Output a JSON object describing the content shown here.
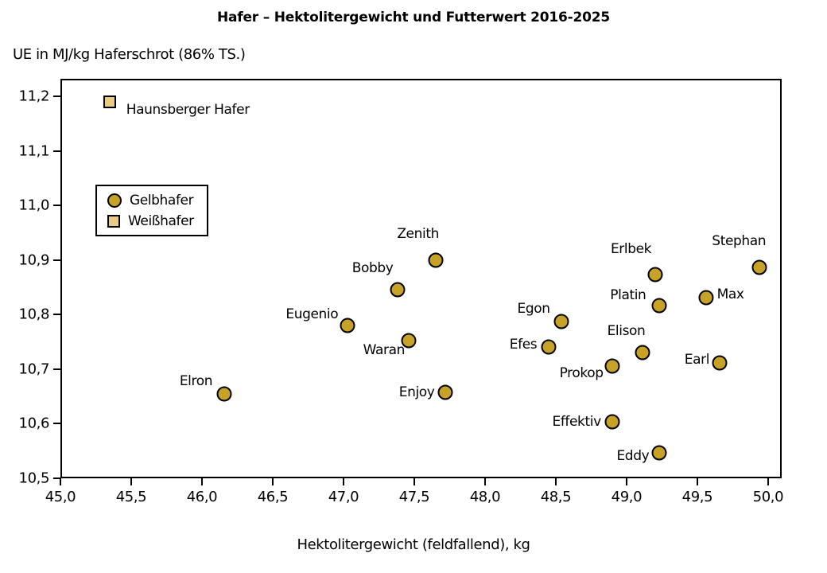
{
  "chart_data": {
    "type": "scatter",
    "title": "Hafer – Hektolitergewicht und Futterwert 2016-2025",
    "y_axis_title": "UE in MJ/kg Haferschrot (86% TS.)",
    "xlabel": "Hektolitergewicht (feldfallend), kg",
    "xlim": [
      45.0,
      50.096
    ],
    "ylim": [
      10.5,
      11.232
    ],
    "grid": false,
    "legend_position": "upper-left-inside",
    "x_ticks": [
      {
        "value": 45.0,
        "label": "45,0"
      },
      {
        "value": 45.5,
        "label": "45,5"
      },
      {
        "value": 46.0,
        "label": "46,0"
      },
      {
        "value": 46.5,
        "label": "46,5"
      },
      {
        "value": 47.0,
        "label": "47,0"
      },
      {
        "value": 47.5,
        "label": "47,5"
      },
      {
        "value": 48.0,
        "label": "48,0"
      },
      {
        "value": 48.5,
        "label": "48,5"
      },
      {
        "value": 49.0,
        "label": "49,0"
      },
      {
        "value": 49.5,
        "label": "49,5"
      },
      {
        "value": 50.0,
        "label": "50,0"
      }
    ],
    "y_ticks": [
      {
        "value": 10.5,
        "label": "10,5"
      },
      {
        "value": 10.6,
        "label": "10,6"
      },
      {
        "value": 10.7,
        "label": "10,7"
      },
      {
        "value": 10.8,
        "label": "10,8"
      },
      {
        "value": 10.9,
        "label": "10,9"
      },
      {
        "value": 11.0,
        "label": "11,0"
      },
      {
        "value": 11.1,
        "label": "11,1"
      },
      {
        "value": 11.2,
        "label": "11,2"
      }
    ],
    "legend": [
      {
        "label": "Gelbhafer",
        "marker": "circle",
        "color": "#c8a227"
      },
      {
        "label": "Weißhafer",
        "marker": "square",
        "color": "#e9cb87"
      }
    ],
    "colors": {
      "gelbhafer_fill": "#c8a227",
      "weisshafer_fill": "#e9cb87",
      "marker_border": "#000000",
      "axis": "#000000"
    },
    "series": [
      {
        "name": "Weißhafer",
        "marker": "square",
        "points": [
          {
            "label": "Haunsberger Hafer",
            "x": 45.35,
            "y": 11.19,
            "dx": 98,
            "dy": 10
          }
        ]
      },
      {
        "name": "Gelbhafer",
        "marker": "circle",
        "points": [
          {
            "label": "Elron",
            "x": 46.16,
            "y": 10.655,
            "dx": -36,
            "dy": -16
          },
          {
            "label": "Eugenio",
            "x": 47.03,
            "y": 10.78,
            "dx": -45,
            "dy": -14
          },
          {
            "label": "Bobby",
            "x": 47.38,
            "y": 10.845,
            "dx": -31,
            "dy": -27
          },
          {
            "label": "Zenith",
            "x": 47.65,
            "y": 10.9,
            "dx": -22,
            "dy": -33
          },
          {
            "label": "Waran",
            "x": 47.46,
            "y": 10.752,
            "dx": -31,
            "dy": 12
          },
          {
            "label": "Enjoy",
            "x": 47.72,
            "y": 10.657,
            "dx": -36,
            "dy": 0
          },
          {
            "label": "Egon",
            "x": 48.54,
            "y": 10.787,
            "dx": -35,
            "dy": -16
          },
          {
            "label": "Efes",
            "x": 48.45,
            "y": 10.74,
            "dx": -32,
            "dy": -3
          },
          {
            "label": "Prokop",
            "x": 48.9,
            "y": 10.706,
            "dx": -39,
            "dy": 9
          },
          {
            "label": "Effektiv",
            "x": 48.9,
            "y": 10.603,
            "dx": -45,
            "dy": 0
          },
          {
            "label": "Eddy",
            "x": 49.23,
            "y": 10.547,
            "dx": -33,
            "dy": 4
          },
          {
            "label": "Elison",
            "x": 49.11,
            "y": 10.731,
            "dx": -20,
            "dy": -27
          },
          {
            "label": "Platin",
            "x": 49.23,
            "y": 10.816,
            "dx": -39,
            "dy": -13
          },
          {
            "label": "Erlbek",
            "x": 49.2,
            "y": 10.873,
            "dx": -30,
            "dy": -32
          },
          {
            "label": "Max",
            "x": 49.56,
            "y": 10.831,
            "dx": 31,
            "dy": -4
          },
          {
            "label": "Earl",
            "x": 49.66,
            "y": 10.712,
            "dx": -29,
            "dy": -4
          },
          {
            "label": "Stephan",
            "x": 49.94,
            "y": 10.887,
            "dx": -26,
            "dy": -33
          }
        ]
      }
    ]
  }
}
